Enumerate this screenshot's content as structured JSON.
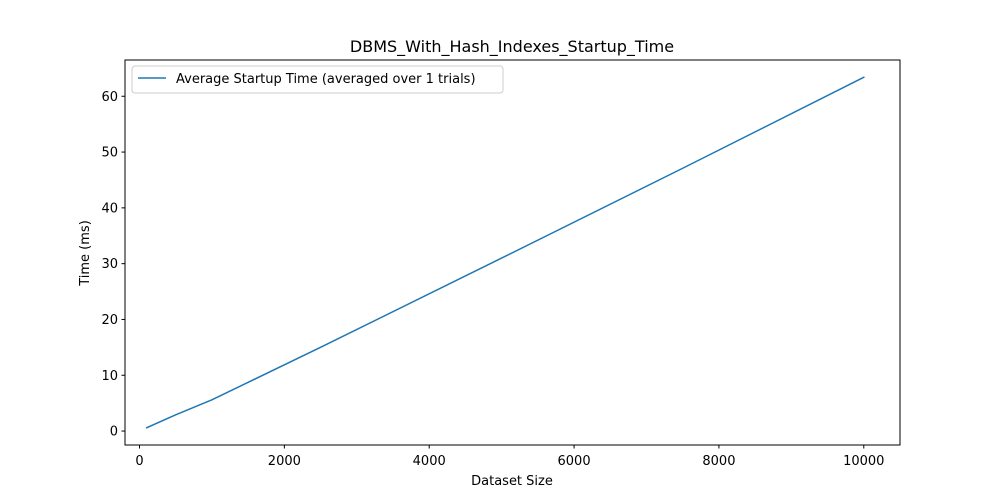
{
  "chart_data": {
    "type": "line",
    "title": "DBMS_With_Hash_Indexes_Startup_Time",
    "xlabel": "Dataset Size",
    "ylabel": "Time (ms)",
    "xlim": [
      -200,
      10500
    ],
    "ylim": [
      -2.5,
      66.5
    ],
    "xticks": [
      0,
      2000,
      4000,
      6000,
      8000,
      10000
    ],
    "yticks": [
      0,
      10,
      20,
      30,
      40,
      50,
      60
    ],
    "grid": false,
    "legend_position": "upper-left",
    "series": [
      {
        "name": "Average Startup Time (averaged over 1 trials)",
        "color": "#1f77b4",
        "x": [
          100,
          500,
          1000,
          2500,
          5000,
          7500,
          10000
        ],
        "y": [
          0.6,
          2.9,
          5.6,
          15.0,
          31.0,
          47.1,
          63.4
        ]
      }
    ]
  }
}
